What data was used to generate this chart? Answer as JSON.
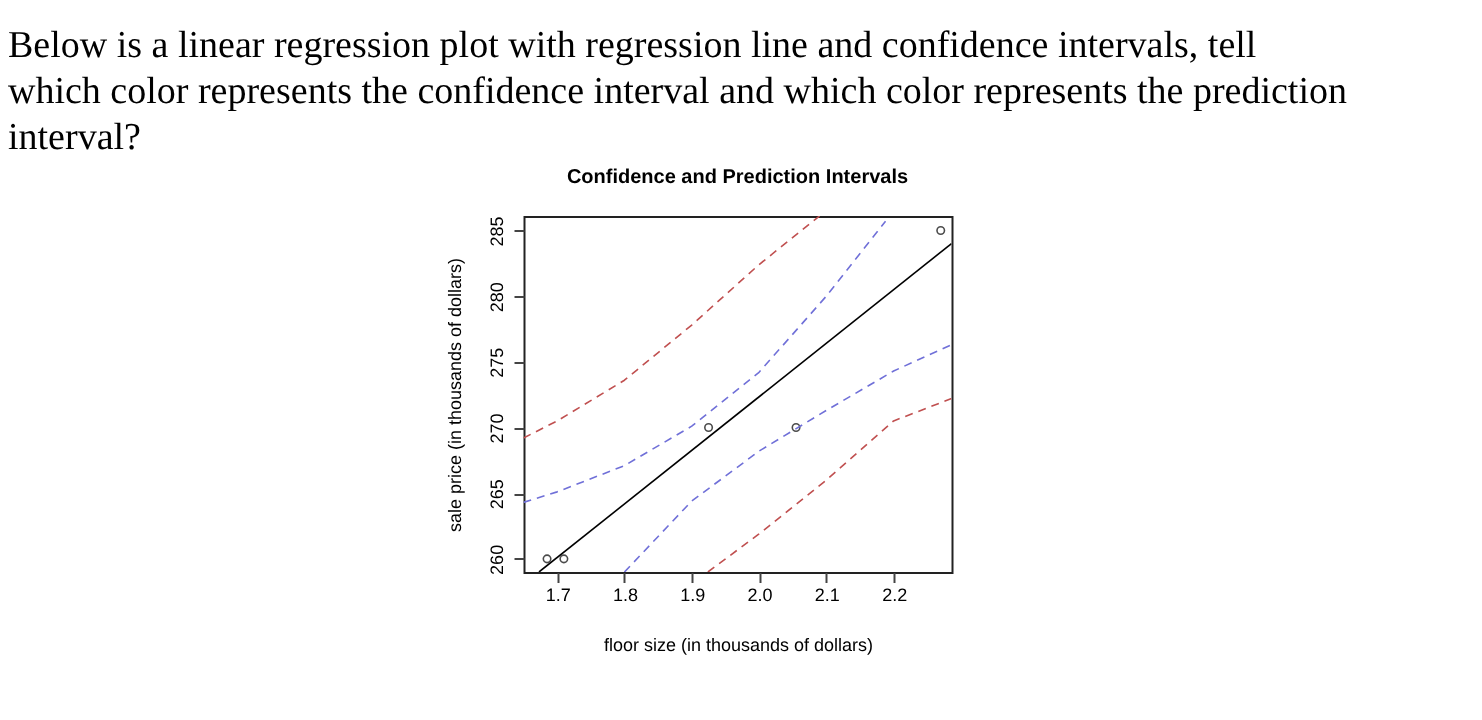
{
  "chart_data": {
    "type": "scatter",
    "title": "Confidence and Prediction Intervals",
    "xlabel": "floor size (in thousands of dollars)",
    "ylabel": "sale price (in thousands of dollars)",
    "annotations": [
      "Below is a linear regression plot with regression line and confidence intervals, tell which color represents the confidence interval and which color represents the prediction interval?"
    ],
    "xlim": [
      1.65,
      2.286
    ],
    "ylim": [
      259.0,
      286.1
    ],
    "xticks": [
      1.7,
      1.8,
      1.9,
      {
        "value": 2.0,
        "label": "2.0"
      },
      2.1,
      2.2
    ],
    "yticks": [
      260,
      265,
      270,
      275,
      280,
      285
    ],
    "grid": false,
    "series": [
      {
        "color": "#000000",
        "marker": "circle",
        "x": [
          1.685,
          1.71,
          1.925,
          2.055,
          2.27
        ],
        "values": [
          260,
          260,
          270,
          270,
          285
        ]
      },
      {
        "type": "line",
        "color": "#000000",
        "line_style": "solid",
        "x": [
          1.673,
          2.286
        ],
        "values": [
          259.0,
          284.0
        ]
      },
      {
        "type": "line",
        "color": "#7070d8",
        "line_style": "dashed",
        "x": [
          1.65,
          1.7,
          1.8,
          1.9,
          2.0,
          2.1,
          2.188
        ],
        "values": [
          264.3,
          265.1,
          267.1,
          270.1,
          274.2,
          280.0,
          285.7
        ]
      },
      {
        "type": "line",
        "color": "#7070d8",
        "line_style": "dashed",
        "x": [
          1.8,
          1.9,
          2.0,
          2.1,
          2.2,
          2.286
        ],
        "values": [
          259.0,
          264.4,
          268.2,
          271.3,
          274.3,
          276.3
        ]
      },
      {
        "type": "line",
        "color": "#c05050",
        "line_style": "dashed",
        "x": [
          1.65,
          1.7,
          1.8,
          1.9,
          2.0,
          2.09
        ],
        "values": [
          269.2,
          270.5,
          273.6,
          277.8,
          282.4,
          286.1
        ]
      },
      {
        "type": "line",
        "color": "#c05050",
        "line_style": "dashed",
        "x": [
          1.924,
          2.0,
          2.1,
          2.2,
          2.286
        ],
        "values": [
          259.0,
          261.9,
          266.0,
          270.5,
          272.2
        ]
      }
    ]
  }
}
